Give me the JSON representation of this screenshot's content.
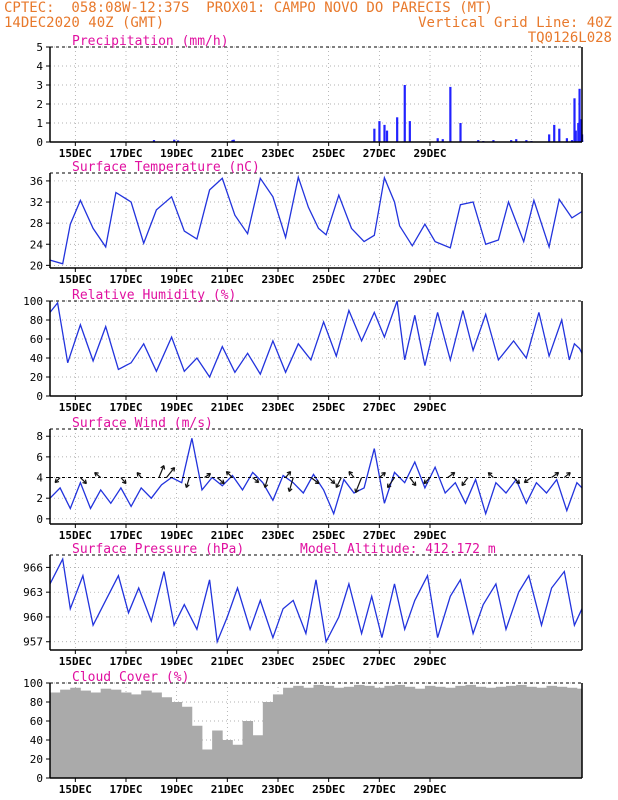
{
  "header": {
    "line1": "CPTEC:  058:08W-12:37S  PROX01: CAMPO NOVO DO PARECIS (MT)",
    "line2_left": "14DEC2020 40Z (GMT)",
    "line2_right": "Vertical Grid Line: 40Z",
    "line3_right": "TQ0126L028",
    "text_color": "#e8792c"
  },
  "style": {
    "title_color": "#e010a0",
    "line_color": "#2233dd",
    "bar_color": "#2222ff",
    "cloud_color": "#aaaaaa",
    "arrow_color": "#111111"
  },
  "chart_data": [
    {
      "type": "bar",
      "title": "Precipitation (mm/h)",
      "xticks": [
        "15DEC",
        "17DEC",
        "19DEC",
        "21DEC",
        "23DEC",
        "25DEC",
        "27DEC",
        "29DEC"
      ],
      "ylim": [
        0,
        5
      ],
      "yticks": [
        0,
        1,
        2,
        3,
        4,
        5
      ],
      "x": [
        4.1,
        4.9,
        5.05,
        7.2,
        7.25,
        12.8,
        13.0,
        13.2,
        13.3,
        13.7,
        14.0,
        14.2,
        15.3,
        15.5,
        15.8,
        16.2,
        16.9,
        17.1,
        17.5,
        18.2,
        18.4,
        18.8,
        19.0,
        19.7,
        19.9,
        20.1,
        20.4,
        20.6,
        21.0
      ],
      "values": [
        0.1,
        0.12,
        0.08,
        0.1,
        0.12,
        0.7,
        1.1,
        0.9,
        0.6,
        1.3,
        3.0,
        1.1,
        0.2,
        0.15,
        2.9,
        1.0,
        0.1,
        0.05,
        0.1,
        0.1,
        0.15,
        0.1,
        0.05,
        0.4,
        0.9,
        0.7,
        0.2,
        0.1,
        0.1
      ],
      "series_extra": {
        "x": [
          20.7,
          20.75,
          20.85,
          20.9,
          20.95,
          21.0
        ],
        "values": [
          2.3,
          0.6,
          1.0,
          2.8,
          1.2,
          0.4
        ]
      }
    },
    {
      "type": "line",
      "title": "Surface Temperature (nC)",
      "xticks": [
        "15DEC",
        "17DEC",
        "19DEC",
        "21DEC",
        "23DEC",
        "25DEC",
        "27DEC",
        "29DEC"
      ],
      "ylim": [
        19.5,
        37.5
      ],
      "yticks": [
        20,
        24,
        28,
        32,
        36
      ],
      "x": [
        0,
        0.5,
        0.8,
        1.2,
        1.7,
        2.2,
        2.6,
        3.2,
        3.7,
        4.2,
        4.8,
        5.3,
        5.8,
        6.3,
        6.8,
        7.3,
        7.8,
        8.3,
        8.8,
        9.3,
        9.8,
        10.2,
        10.6,
        10.9,
        11.4,
        11.9,
        12.4,
        12.8,
        13.2,
        13.6,
        13.8,
        14.3,
        14.8,
        15.2,
        15.8,
        16.2,
        16.7,
        17.2,
        17.7,
        18.1,
        18.7,
        19.1,
        19.7,
        20.1,
        20.6,
        21.0
      ],
      "values": [
        21,
        20.3,
        27.8,
        32.3,
        27,
        23.5,
        33.8,
        32,
        24.2,
        30.5,
        33,
        26.5,
        25,
        34.3,
        36.5,
        29.5,
        26,
        36.5,
        33,
        25.3,
        36.7,
        31,
        27,
        25.8,
        33.3,
        27,
        24.5,
        25.7,
        36.6,
        32,
        27.5,
        23.7,
        27.8,
        24.5,
        23.3,
        31.5,
        32,
        24,
        24.8,
        32,
        24.5,
        32.3,
        23.5,
        32.5,
        29,
        30.2
      ]
    },
    {
      "type": "line",
      "title": "Relative Humidity (%)",
      "xticks": [
        "15DEC",
        "17DEC",
        "19DEC",
        "21DEC",
        "23DEC",
        "25DEC",
        "27DEC",
        "29DEC"
      ],
      "ylim": [
        0,
        100
      ],
      "yticks": [
        0,
        20,
        40,
        60,
        80,
        100
      ],
      "x": [
        0,
        0.3,
        0.7,
        1.2,
        1.7,
        2.2,
        2.7,
        3.2,
        3.7,
        4.2,
        4.8,
        5.3,
        5.8,
        6.3,
        6.8,
        7.3,
        7.8,
        8.3,
        8.8,
        9.3,
        9.8,
        10.3,
        10.8,
        11.3,
        11.8,
        12.3,
        12.8,
        13.2,
        13.7,
        14.0,
        14.4,
        14.8,
        15.3,
        15.8,
        16.3,
        16.7,
        17.2,
        17.7,
        18.3,
        18.8,
        19.3,
        19.7,
        20.2,
        20.5,
        20.7,
        20.9,
        21.0
      ],
      "values": [
        88,
        98,
        35,
        75,
        37,
        73,
        28,
        35,
        55,
        26,
        62,
        26,
        40,
        20,
        52,
        25,
        45,
        23,
        58,
        25,
        55,
        38,
        78,
        42,
        90,
        58,
        88,
        62,
        100,
        38,
        85,
        32,
        88,
        38,
        90,
        48,
        86,
        38,
        58,
        40,
        88,
        42,
        80,
        38,
        55,
        50,
        45
      ]
    },
    {
      "type": "line",
      "title": "Surface Wind (m/s)",
      "xticks": [
        "15DEC",
        "17DEC",
        "19DEC",
        "21DEC",
        "23DEC",
        "25DEC",
        "27DEC",
        "29DEC"
      ],
      "ylim": [
        -0.5,
        8.7
      ],
      "yticks": [
        0,
        2,
        4,
        6,
        8
      ],
      "x": [
        0,
        0.4,
        0.8,
        1.2,
        1.6,
        2.0,
        2.4,
        2.8,
        3.2,
        3.6,
        4.0,
        4.4,
        4.8,
        5.2,
        5.6,
        6.0,
        6.4,
        6.8,
        7.2,
        7.6,
        8.0,
        8.4,
        8.8,
        9.2,
        9.6,
        10.0,
        10.4,
        10.8,
        11.2,
        11.6,
        12.0,
        12.4,
        12.8,
        13.2,
        13.6,
        14.0,
        14.4,
        14.8,
        15.2,
        15.6,
        16.0,
        16.4,
        16.8,
        17.2,
        17.6,
        18.0,
        18.4,
        18.8,
        19.2,
        19.6,
        20.0,
        20.4,
        20.8,
        21.0
      ],
      "values": [
        2,
        3,
        1,
        3.5,
        1,
        2.8,
        1.5,
        3,
        1.2,
        3,
        2,
        3.3,
        4,
        3.5,
        7.8,
        2.8,
        4,
        3.2,
        4.2,
        2.8,
        4.5,
        3.5,
        1.8,
        4.2,
        3.5,
        2.5,
        4.3,
        2.8,
        0.5,
        3.8,
        2.5,
        3,
        6.8,
        1.5,
        4.5,
        3.5,
        5.5,
        3,
        5,
        2.5,
        3.5,
        1.5,
        3.8,
        0.5,
        3.5,
        2.5,
        3.8,
        1.5,
        3.5,
        2.5,
        3.8,
        0.8,
        3.5,
        3
      ],
      "arrows": {
        "baseline": 4,
        "x": [
          0.4,
          1.2,
          2.0,
          2.8,
          3.6,
          4.3,
          4.6,
          5.5,
          6.1,
          6.6,
          7.2,
          8.0,
          8.6,
          9.3,
          9.6,
          10.3,
          11.0,
          11.5,
          12.0,
          12.3,
          13.0,
          13.6,
          14.2,
          15.0,
          15.7,
          16.5,
          17.5,
          18.3,
          19.0,
          19.8,
          20.3
        ],
        "dx": [
          -5,
          6,
          -6,
          5,
          -4,
          5,
          8,
          -3,
          6,
          7,
          -6,
          6,
          -3,
          5,
          -4,
          8,
          6,
          -5,
          -5,
          -6,
          6,
          -7,
          6,
          -6,
          7,
          -6,
          -5,
          6,
          -7,
          7,
          6
        ],
        "dy": [
          5,
          6,
          -5,
          6,
          -5,
          -12,
          -10,
          10,
          -4,
          6,
          -6,
          5,
          10,
          -6,
          14,
          6,
          6,
          10,
          -6,
          15,
          -5,
          10,
          8,
          6,
          -5,
          8,
          -5,
          6,
          5,
          -5,
          -5
        ]
      }
    },
    {
      "type": "line",
      "title": "Surface Pressure (hPa)",
      "annotation": "Model Altitude: 412.172 m",
      "xticks": [
        "15DEC",
        "17DEC",
        "19DEC",
        "21DEC",
        "23DEC",
        "25DEC",
        "27DEC",
        "29DEC"
      ],
      "ylim": [
        956,
        967.5
      ],
      "yticks": [
        957,
        960,
        963,
        966
      ],
      "x": [
        0,
        0.5,
        0.8,
        1.3,
        1.7,
        2.2,
        2.7,
        3.1,
        3.5,
        4.0,
        4.5,
        4.9,
        5.3,
        5.8,
        6.3,
        6.6,
        7.0,
        7.4,
        7.9,
        8.3,
        8.8,
        9.2,
        9.6,
        10.1,
        10.5,
        10.9,
        11.4,
        11.8,
        12.3,
        12.7,
        13.1,
        13.6,
        14.0,
        14.4,
        14.9,
        15.3,
        15.8,
        16.2,
        16.7,
        17.1,
        17.6,
        18.0,
        18.5,
        18.9,
        19.4,
        19.8,
        20.3,
        20.7,
        21.0
      ],
      "values": [
        964,
        967,
        961,
        965,
        959,
        962,
        965,
        960.5,
        963.5,
        959.5,
        965.5,
        959,
        961.5,
        958.5,
        964.5,
        957,
        960,
        963.5,
        958.5,
        962,
        957.5,
        961,
        962,
        958,
        964.5,
        957,
        960,
        964,
        958,
        962.5,
        957.5,
        964,
        958.5,
        962,
        965,
        957.5,
        962.5,
        964.5,
        958,
        961.5,
        964,
        958.5,
        963,
        965,
        959,
        963.5,
        965.5,
        959,
        961
      ]
    },
    {
      "type": "area",
      "title": "Cloud Cover (%)",
      "xticks": [
        "15DEC",
        "17DEC",
        "19DEC",
        "21DEC",
        "23DEC",
        "25DEC",
        "27DEC",
        "29DEC"
      ],
      "ylim": [
        0,
        100
      ],
      "yticks": [
        0,
        20,
        40,
        60,
        80,
        100
      ],
      "x": [
        0,
        0.4,
        0.8,
        1.2,
        1.6,
        2.0,
        2.4,
        2.8,
        3.2,
        3.6,
        4.0,
        4.4,
        4.8,
        5.2,
        5.6,
        6.0,
        6.4,
        6.8,
        7.2,
        7.6,
        8.0,
        8.4,
        8.8,
        9.2,
        9.6,
        10.0,
        10.4,
        10.8,
        11.2,
        11.6,
        12.0,
        12.4,
        12.8,
        13.2,
        13.6,
        14.0,
        14.4,
        14.8,
        15.2,
        15.6,
        16.0,
        16.4,
        16.8,
        17.2,
        17.6,
        18.0,
        18.4,
        18.8,
        19.2,
        19.6,
        20.0,
        20.4,
        20.8,
        21.0
      ],
      "values": [
        90,
        93,
        95,
        92,
        90,
        94,
        93,
        90,
        88,
        92,
        90,
        85,
        80,
        75,
        55,
        30,
        50,
        40,
        35,
        60,
        45,
        80,
        88,
        95,
        97,
        95,
        98,
        97,
        95,
        96,
        98,
        97,
        95,
        97,
        98,
        96,
        94,
        97,
        96,
        95,
        97,
        98,
        96,
        95,
        96,
        97,
        98,
        96,
        95,
        97,
        96,
        95,
        94,
        90
      ]
    }
  ]
}
